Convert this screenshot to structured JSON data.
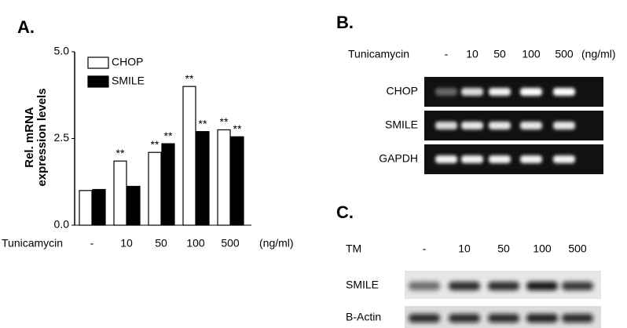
{
  "chart_data": {
    "type": "bar",
    "panel_label": "A.",
    "ylabel": [
      "Rel. mRNA",
      "expression levels"
    ],
    "xlabel": "Tunicamycin",
    "x_unit": "(ng/ml)",
    "categories": [
      "-",
      "10",
      "50",
      "100",
      "500"
    ],
    "series": [
      {
        "name": "CHOP",
        "color": "#ffffff",
        "values": [
          1.0,
          1.85,
          2.1,
          4.0,
          2.75
        ],
        "significance": [
          null,
          "**",
          "**",
          "**",
          "**"
        ]
      },
      {
        "name": "SMILE",
        "color": "#000000",
        "values": [
          1.03,
          1.12,
          2.35,
          2.7,
          2.55
        ],
        "significance": [
          null,
          null,
          "**",
          "**",
          "**"
        ]
      }
    ],
    "ylim": [
      0,
      5.0
    ],
    "yticks": [
      {
        "value": 0,
        "label": "0.0"
      },
      {
        "value": 2.5,
        "label": "2.5"
      },
      {
        "value": 5,
        "label": "5.0"
      }
    ],
    "legend": "top-left"
  },
  "panel_b": {
    "label": "B.",
    "treatment": "Tunicamycin",
    "lanes": [
      "-",
      "10",
      "50",
      "100",
      "500"
    ],
    "unit": "(ng/ml)",
    "rows": [
      "CHOP",
      "SMILE",
      "GAPDH"
    ]
  },
  "panel_c": {
    "label": "C.",
    "treatment": "TM",
    "lanes": [
      "-",
      "10",
      "50",
      "100",
      "500"
    ],
    "rows": [
      "SMILE",
      "B-Actin"
    ]
  }
}
